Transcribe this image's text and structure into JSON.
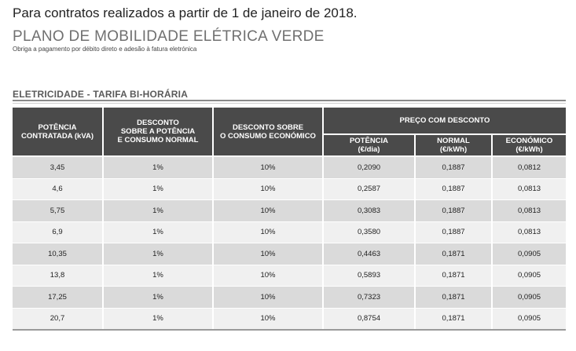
{
  "intro": "Para contratos realizados a partir de 1 de janeiro de 2018.",
  "plan": {
    "title": "PLANO DE MOBILIDADE ELÉTRICA VERDE",
    "subtitle": "Obriga a pagamento por débito direto e adesão à fatura eletrónica"
  },
  "section_title": "ELETRICIDADE - TARIFA BI-HORÁRIA",
  "table": {
    "headers": {
      "power": [
        "POTÊNCIA",
        "CONTRATADA (kVA)"
      ],
      "discount_power": [
        "DESCONTO",
        "SOBRE A POTÊNCIA",
        "E CONSUMO NORMAL"
      ],
      "discount_economic": [
        "DESCONTO SOBRE",
        "O CONSUMO ECONÓMICO"
      ],
      "price_group": "PREÇO COM DESCONTO",
      "price_power": [
        "POTÊNCIA",
        "(€/dia)"
      ],
      "price_normal": [
        "NORMAL",
        "(€/kWh)"
      ],
      "price_economic": [
        "ECONÓMICO",
        "(€/kWh)"
      ]
    },
    "rows": [
      [
        "3,45",
        "1%",
        "10%",
        "0,2090",
        "0,1887",
        "0,0812"
      ],
      [
        "4,6",
        "1%",
        "10%",
        "0,2587",
        "0,1887",
        "0,0813"
      ],
      [
        "5,75",
        "1%",
        "10%",
        "0,3083",
        "0,1887",
        "0,0813"
      ],
      [
        "6,9",
        "1%",
        "10%",
        "0,3580",
        "0,1887",
        "0,0813"
      ],
      [
        "10,35",
        "1%",
        "10%",
        "0,4463",
        "0,1871",
        "0,0905"
      ],
      [
        "13,8",
        "1%",
        "10%",
        "0,5893",
        "0,1871",
        "0,0905"
      ],
      [
        "17,25",
        "1%",
        "10%",
        "0,7323",
        "0,1871",
        "0,0905"
      ],
      [
        "20,7",
        "1%",
        "10%",
        "0,8754",
        "0,1871",
        "0,0905"
      ]
    ]
  }
}
